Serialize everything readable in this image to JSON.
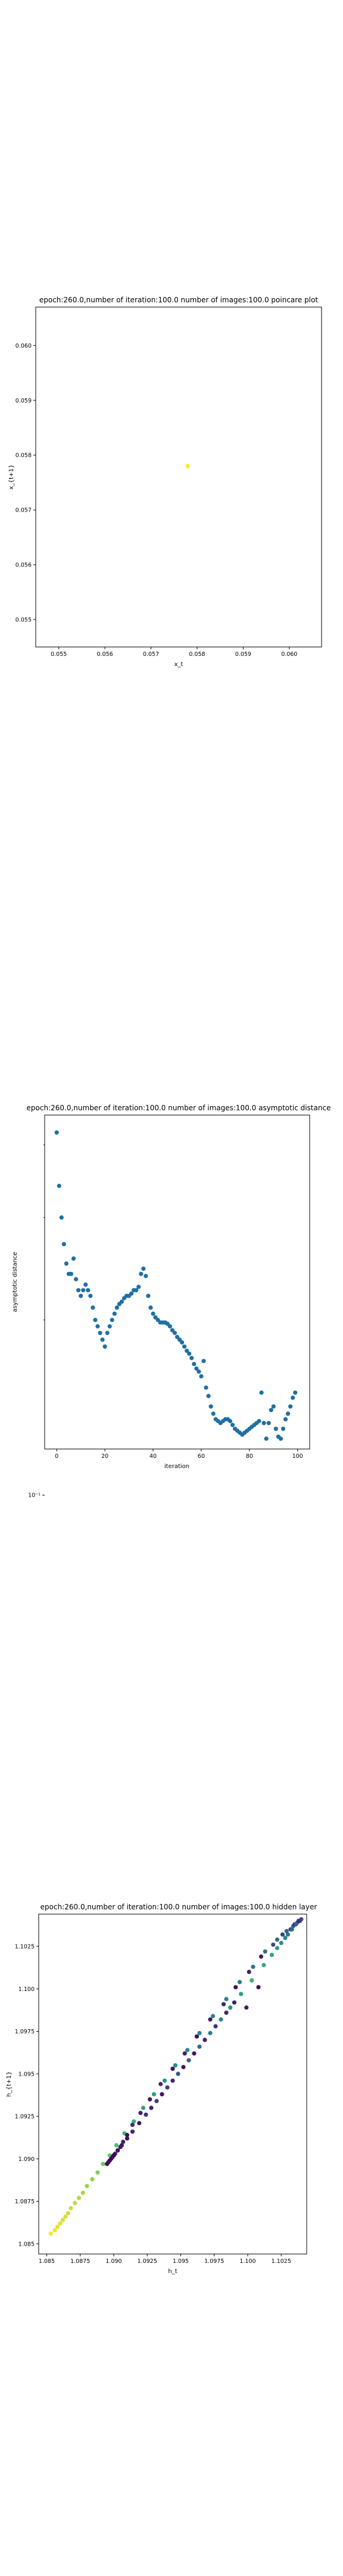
{
  "chart_data": [
    {
      "type": "scatter",
      "title": "epoch:260.0,number of iteration:100.0 number of images:100.0 poincare plot",
      "xlabel": "x_t",
      "ylabel": "x_{t+1}",
      "xlim": [
        0.0545,
        0.0607
      ],
      "ylim": [
        0.0545,
        0.0607
      ],
      "xticks": [
        0.055,
        0.056,
        0.057,
        0.058,
        0.059,
        0.06
      ],
      "yticks": [
        0.055,
        0.056,
        0.057,
        0.058,
        0.059,
        0.06
      ],
      "tick_format": "fixed3",
      "x": [
        0.0578
      ],
      "y": [
        0.0578
      ],
      "color": "#fde725"
    },
    {
      "type": "scatter",
      "title": "epoch:260.0,number of iteration:100.0  number of images:100.0 asymptotic distance",
      "xlabel": "iteration",
      "ylabel": "asymptotic distance",
      "xlim": [
        -5,
        105
      ],
      "ylim": [
        0.12,
        0.45
      ],
      "yscale": "log",
      "xticks": [
        0,
        20,
        40,
        60,
        80,
        100
      ],
      "yticks": [
        0.1
      ],
      "ytick_labels": [
        "10⁻¹"
      ],
      "color": "#1f6fa3",
      "x": [
        0,
        1,
        2,
        3,
        4,
        5,
        6,
        7,
        8,
        9,
        10,
        11,
        12,
        13,
        14,
        15,
        16,
        17,
        18,
        19,
        20,
        21,
        22,
        23,
        24,
        25,
        26,
        27,
        28,
        29,
        30,
        31,
        32,
        33,
        34,
        35,
        36,
        37,
        38,
        39,
        40,
        41,
        42,
        43,
        44,
        45,
        46,
        47,
        48,
        49,
        50,
        51,
        52,
        53,
        54,
        55,
        56,
        57,
        58,
        59,
        60,
        61,
        62,
        63,
        64,
        65,
        66,
        67,
        68,
        69,
        70,
        71,
        72,
        73,
        74,
        75,
        76,
        77,
        78,
        79,
        80,
        81,
        82,
        83,
        84,
        85,
        86,
        87,
        88,
        89,
        90,
        91,
        92,
        93,
        94,
        95,
        96,
        97,
        98,
        99
      ],
      "y": [
        0.42,
        0.34,
        0.3,
        0.27,
        0.25,
        0.24,
        0.24,
        0.255,
        0.235,
        0.225,
        0.22,
        0.225,
        0.23,
        0.225,
        0.22,
        0.21,
        0.2,
        0.195,
        0.19,
        0.185,
        0.18,
        0.19,
        0.195,
        0.2,
        0.205,
        0.21,
        0.213,
        0.215,
        0.218,
        0.22,
        0.22,
        0.222,
        0.225,
        0.225,
        0.228,
        0.24,
        0.245,
        0.238,
        0.22,
        0.21,
        0.205,
        0.202,
        0.2,
        0.198,
        0.198,
        0.198,
        0.197,
        0.195,
        0.192,
        0.19,
        0.187,
        0.185,
        0.183,
        0.18,
        0.177,
        0.175,
        0.172,
        0.168,
        0.165,
        0.163,
        0.16,
        0.17,
        0.153,
        0.148,
        0.142,
        0.138,
        0.135,
        0.134,
        0.133,
        0.134,
        0.135,
        0.135,
        0.134,
        0.132,
        0.13,
        0.129,
        0.128,
        0.127,
        0.128,
        0.129,
        0.13,
        0.131,
        0.132,
        0.133,
        0.134,
        0.15,
        0.133,
        0.125,
        0.133,
        0.14,
        0.142,
        0.13,
        0.126,
        0.125,
        0.13,
        0.135,
        0.138,
        0.142,
        0.147,
        0.15
      ]
    },
    {
      "type": "scatter",
      "title": "epoch:260.0,number of iteration:100.0  number of images:100.0 hidden layer",
      "xlabel": "h_t",
      "ylabel": "h_{t+1}",
      "xlim": [
        1.0844,
        1.1044
      ],
      "ylim": [
        1.0844,
        1.1044
      ],
      "xticks": [
        1.085,
        1.0875,
        1.09,
        1.0925,
        1.095,
        1.0975,
        1.1,
        1.1025
      ],
      "yticks": [
        1.085,
        1.0875,
        1.09,
        1.0925,
        1.095,
        1.0975,
        1.1,
        1.1025
      ],
      "tick_format": "trim4",
      "colormap": "viridis",
      "x": [
        1.0853,
        1.0856,
        1.0858,
        1.086,
        1.0862,
        1.0864,
        1.0866,
        1.0868,
        1.0871,
        1.0874,
        1.0877,
        1.088,
        1.0884,
        1.0888,
        1.0892,
        1.0897,
        1.0902,
        1.0908,
        1.0915,
        1.0922,
        1.093,
        1.0938,
        1.0946,
        1.0955,
        1.0964,
        1.0974,
        1.0984,
        1.0994,
        1.1004,
        1.1013,
        1.1022,
        1.1029,
        1.1034,
        1.1037,
        1.1039,
        1.104,
        1.0899,
        1.0901,
        1.0903,
        1.0905,
        1.0907,
        1.091,
        1.0914,
        1.092,
        1.0927,
        1.0935,
        1.0944,
        1.0953,
        1.0962,
        1.0972,
        1.0982,
        1.0991,
        1.1001,
        1.101,
        1.1019,
        1.1026,
        1.1032,
        1.1035,
        1.1038,
        1.1036,
        1.1033,
        1.103,
        1.1028,
        1.1025,
        1.1022,
        1.1018,
        1.1012,
        1.1008,
        1.1003,
        1.0999,
        1.0995,
        1.099,
        1.0987,
        1.0984,
        1.098,
        1.0976,
        1.0972,
        1.0968,
        1.0964,
        1.096,
        1.0956,
        1.0952,
        1.0948,
        1.0944,
        1.094,
        1.0936,
        1.0932,
        1.0928,
        1.0924,
        1.0919,
        1.0914,
        1.091,
        1.0906,
        1.0903,
        1.09,
        1.0898,
        1.0897,
        1.0896,
        1.0895,
        1.09
      ],
      "y": [
        1.0856,
        1.0858,
        1.086,
        1.0862,
        1.0864,
        1.0866,
        1.0868,
        1.0871,
        1.0874,
        1.0877,
        1.088,
        1.0884,
        1.0888,
        1.0892,
        1.0897,
        1.0902,
        1.0908,
        1.0915,
        1.0922,
        1.093,
        1.0938,
        1.0946,
        1.0955,
        1.0964,
        1.0974,
        1.0984,
        1.0994,
        1.1004,
        1.1013,
        1.1022,
        1.1029,
        1.1034,
        1.1037,
        1.1039,
        1.104,
        1.1041,
        1.0901,
        1.0903,
        1.0905,
        1.0907,
        1.091,
        1.0914,
        1.092,
        1.0927,
        1.0935,
        1.0944,
        1.0953,
        1.0962,
        1.0972,
        1.0982,
        1.0991,
        1.1001,
        1.101,
        1.1019,
        1.1026,
        1.1032,
        1.1035,
        1.1038,
        1.104,
        1.1038,
        1.1035,
        1.1032,
        1.103,
        1.1027,
        1.1024,
        1.102,
        1.1014,
        1.1001,
        1.1005,
        1.0989,
        1.0997,
        1.0992,
        1.0989,
        1.0986,
        1.0982,
        1.0978,
        1.0974,
        1.097,
        1.0966,
        1.0962,
        1.0958,
        1.0954,
        1.095,
        1.0946,
        1.0942,
        1.0938,
        1.0934,
        1.093,
        1.0926,
        1.0921,
        1.0916,
        1.0912,
        1.0908,
        1.0905,
        1.0902,
        1.09,
        1.0899,
        1.0898,
        1.0897,
        1.0902
      ],
      "c": [
        0.99,
        0.98,
        0.97,
        0.96,
        0.95,
        0.94,
        0.93,
        0.92,
        0.9,
        0.88,
        0.86,
        0.84,
        0.82,
        0.8,
        0.77,
        0.74,
        0.7,
        0.66,
        0.62,
        0.58,
        0.55,
        0.52,
        0.5,
        0.48,
        0.46,
        0.44,
        0.42,
        0.4,
        0.38,
        0.36,
        0.34,
        0.32,
        0.3,
        0.28,
        0.26,
        0.24,
        0.05,
        0.08,
        0.1,
        0.06,
        0.12,
        0.04,
        0.15,
        0.1,
        0.08,
        0.12,
        0.06,
        0.1,
        0.04,
        0.08,
        0.12,
        0.05,
        0.1,
        0.06,
        0.22,
        0.2,
        0.18,
        0.16,
        0.14,
        0.3,
        0.35,
        0.4,
        0.45,
        0.5,
        0.55,
        0.58,
        0.6,
        0.05,
        0.62,
        0.08,
        0.55,
        0.1,
        0.5,
        0.12,
        0.45,
        0.15,
        0.4,
        0.1,
        0.35,
        0.08,
        0.3,
        0.06,
        0.25,
        0.12,
        0.2,
        0.05,
        0.18,
        0.1,
        0.15,
        0.06,
        0.12,
        0.05,
        0.08,
        0.04,
        0.06,
        0.03,
        0.02,
        0.05,
        0.03,
        0.01
      ]
    }
  ]
}
